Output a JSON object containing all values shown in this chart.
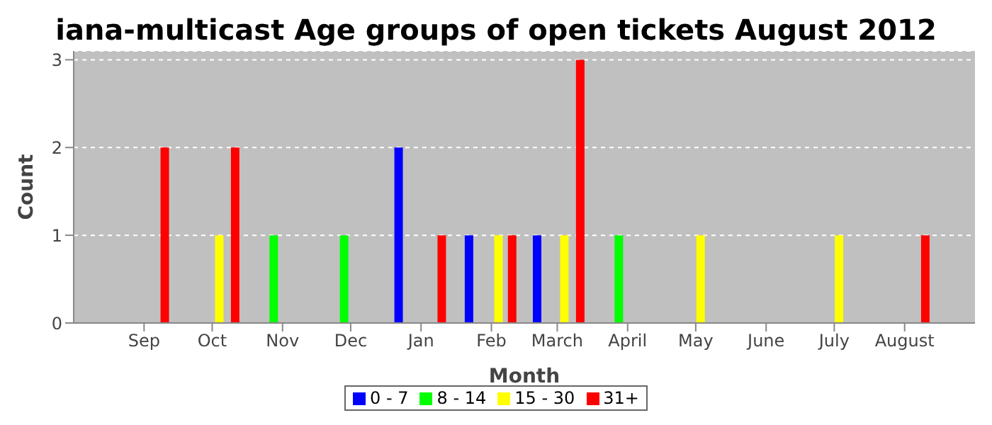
{
  "chart_data": {
    "type": "bar",
    "title": "iana-multicast Age groups of open tickets August 2012",
    "xlabel": "Month",
    "ylabel": "Count",
    "xlim": [
      "2011-08-01",
      "2012-09-01"
    ],
    "xticks": [
      {
        "value": "2011-09-01",
        "label": "Sep"
      },
      {
        "value": "2011-10-01",
        "label": "Oct"
      },
      {
        "value": "2011-11-01",
        "label": "Nov"
      },
      {
        "value": "2011-12-01",
        "label": "Dec"
      },
      {
        "value": "2012-01-01",
        "label": "Jan"
      },
      {
        "value": "2012-02-01",
        "label": "Feb"
      },
      {
        "value": "2012-03-01",
        "label": "March"
      },
      {
        "value": "2012-04-01",
        "label": "April"
      },
      {
        "value": "2012-05-01",
        "label": "May"
      },
      {
        "value": "2012-06-01",
        "label": "June"
      },
      {
        "value": "2012-07-01",
        "label": "July"
      },
      {
        "value": "2012-08-01",
        "label": "August"
      }
    ],
    "ylim": [
      0,
      3.1
    ],
    "yticks": [
      0,
      1,
      2,
      3
    ],
    "grid": "y",
    "legend": "bottom",
    "series": [
      {
        "name": "0 - 7",
        "color": "#0000ff",
        "x": [
          "2011-12-22",
          "2012-01-22",
          "2012-02-21"
        ],
        "values": [
          2,
          1,
          1
        ]
      },
      {
        "name": "8 - 14",
        "color": "#00ff00",
        "x": [
          "2011-10-28",
          "2011-11-28",
          "2012-03-28"
        ],
        "values": [
          1,
          1,
          1
        ]
      },
      {
        "name": "15 - 30",
        "color": "#ffff00",
        "x": [
          "2011-10-04",
          "2012-02-04",
          "2012-03-04",
          "2012-05-03",
          "2012-07-03"
        ],
        "values": [
          1,
          1,
          1,
          1,
          1
        ]
      },
      {
        "name": "31+",
        "color": "#ff0000",
        "x": [
          "2011-09-10",
          "2011-10-11",
          "2012-01-10",
          "2012-02-10",
          "2012-03-11",
          "2012-08-10"
        ],
        "values": [
          2,
          2,
          1,
          1,
          3,
          1
        ]
      }
    ]
  }
}
